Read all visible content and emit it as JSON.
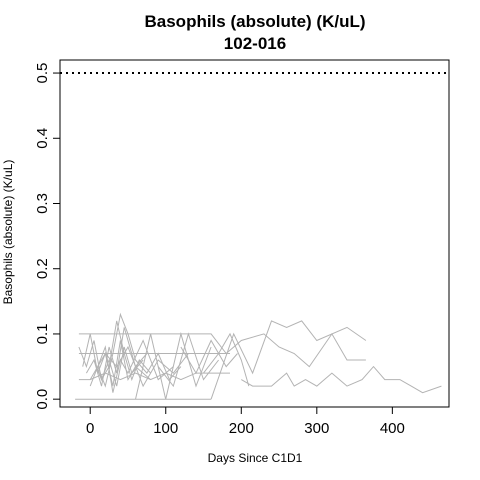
{
  "chart_data": {
    "type": "line",
    "title": "Basophils (absolute) (K/uL)",
    "subtitle": "102-016",
    "xlabel": "Days Since C1D1",
    "ylabel": "Basophils (absolute) (K/uL)",
    "xlim": [
      -40,
      475
    ],
    "ylim": [
      -0.012,
      0.52
    ],
    "xticks": [
      0,
      100,
      200,
      300,
      400
    ],
    "yticks": [
      0.0,
      0.1,
      0.2,
      0.3,
      0.4,
      0.5
    ],
    "ytick_labels": [
      "0.0",
      "0.1",
      "0.2",
      "0.3",
      "0.4",
      "0.5"
    ],
    "reference_line": {
      "y": 0.5,
      "style": "dotted"
    },
    "line_color": "#b3b3b3",
    "grid": false,
    "series": [
      {
        "x": [
          -20,
          100,
          160
        ],
        "y": [
          0.0,
          0.0,
          0.0
        ]
      },
      {
        "x": [
          -15,
          0,
          20,
          40,
          60,
          80,
          100,
          120,
          140,
          160,
          180
        ],
        "y": [
          0.1,
          0.1,
          0.1,
          0.1,
          0.1,
          0.1,
          0.1,
          0.1,
          0.1,
          0.1,
          0.07
        ]
      },
      {
        "x": [
          -15,
          0,
          20,
          40,
          60,
          80,
          100,
          120,
          140,
          160,
          185
        ],
        "y": [
          0.03,
          0.03,
          0.04,
          0.03,
          0.04,
          0.03,
          0.04,
          0.03,
          0.04,
          0.04,
          0.04
        ]
      },
      {
        "x": [
          -15,
          0,
          30,
          60,
          90,
          120,
          150,
          185
        ],
        "y": [
          0.07,
          0.07,
          0.07,
          0.07,
          0.07,
          0.07,
          0.07,
          0.07
        ]
      },
      {
        "x": [
          -15,
          -5,
          5,
          15,
          25,
          35,
          45,
          55,
          70
        ],
        "y": [
          0.08,
          0.05,
          0.09,
          0.03,
          0.06,
          0.02,
          0.08,
          0.04,
          0.06
        ]
      },
      {
        "x": [
          -10,
          0,
          10,
          20,
          30,
          40,
          50,
          60,
          75
        ],
        "y": [
          0.05,
          0.1,
          0.04,
          0.07,
          0.02,
          0.09,
          0.03,
          0.05,
          0.07
        ]
      },
      {
        "x": [
          -5,
          5,
          15,
          25,
          35,
          45,
          60,
          80
        ],
        "y": [
          0.04,
          0.06,
          0.02,
          0.08,
          0.04,
          0.11,
          0.05,
          0.03
        ]
      },
      {
        "x": [
          0,
          10,
          20,
          30,
          40,
          50,
          70,
          90,
          110
        ],
        "y": [
          0.02,
          0.05,
          0.08,
          0.01,
          0.06,
          0.04,
          0.09,
          0.03,
          0.05
        ]
      },
      {
        "x": [
          5,
          15,
          25,
          35,
          45,
          55,
          65,
          80
        ],
        "y": [
          0.06,
          0.03,
          0.05,
          0.12,
          0.07,
          0.03,
          0.06,
          0.04
        ]
      },
      {
        "x": [
          10,
          20,
          30,
          40,
          50,
          60,
          75,
          90,
          105,
          120
        ],
        "y": [
          0.05,
          0.02,
          0.07,
          0.13,
          0.1,
          0.06,
          0.04,
          0.07,
          0.03,
          0.05
        ]
      },
      {
        "x": [
          0,
          20,
          35,
          50,
          70,
          90,
          110,
          130
        ],
        "y": [
          0.03,
          0.07,
          0.05,
          0.08,
          0.02,
          0.06,
          0.04,
          0.07
        ]
      },
      {
        "x": [
          60,
          80,
          100,
          120,
          140,
          160
        ],
        "y": [
          0.0,
          0.1,
          0.0,
          0.1,
          0.02,
          0.08
        ]
      },
      {
        "x": [
          90,
          110,
          130,
          150,
          170
        ],
        "y": [
          0.05,
          0.02,
          0.1,
          0.03,
          0.06
        ]
      },
      {
        "x": [
          120,
          140,
          160,
          180,
          195
        ],
        "y": [
          0.08,
          0.04,
          0.09,
          0.05,
          0.07
        ]
      },
      {
        "x": [
          150,
          170,
          185,
          200,
          210
        ],
        "y": [
          0.04,
          0.07,
          0.1,
          0.06,
          0.02
        ]
      },
      {
        "x": [
          160,
          190,
          215,
          240,
          260,
          280,
          300,
          340,
          365
        ],
        "y": [
          0.0,
          0.1,
          0.04,
          0.12,
          0.11,
          0.12,
          0.09,
          0.11,
          0.09
        ]
      },
      {
        "x": [
          180,
          200,
          230,
          250,
          270,
          290,
          320,
          340,
          365
        ],
        "y": [
          0.07,
          0.09,
          0.1,
          0.08,
          0.07,
          0.05,
          0.1,
          0.06,
          0.06
        ]
      },
      {
        "x": [
          200,
          215,
          240,
          260,
          270,
          285,
          300,
          320,
          340,
          360,
          375,
          390,
          410,
          425,
          440,
          465
        ],
        "y": [
          0.03,
          0.02,
          0.02,
          0.04,
          0.02,
          0.03,
          0.02,
          0.04,
          0.02,
          0.03,
          0.05,
          0.03,
          0.03,
          0.02,
          0.01,
          0.02
        ]
      }
    ]
  }
}
